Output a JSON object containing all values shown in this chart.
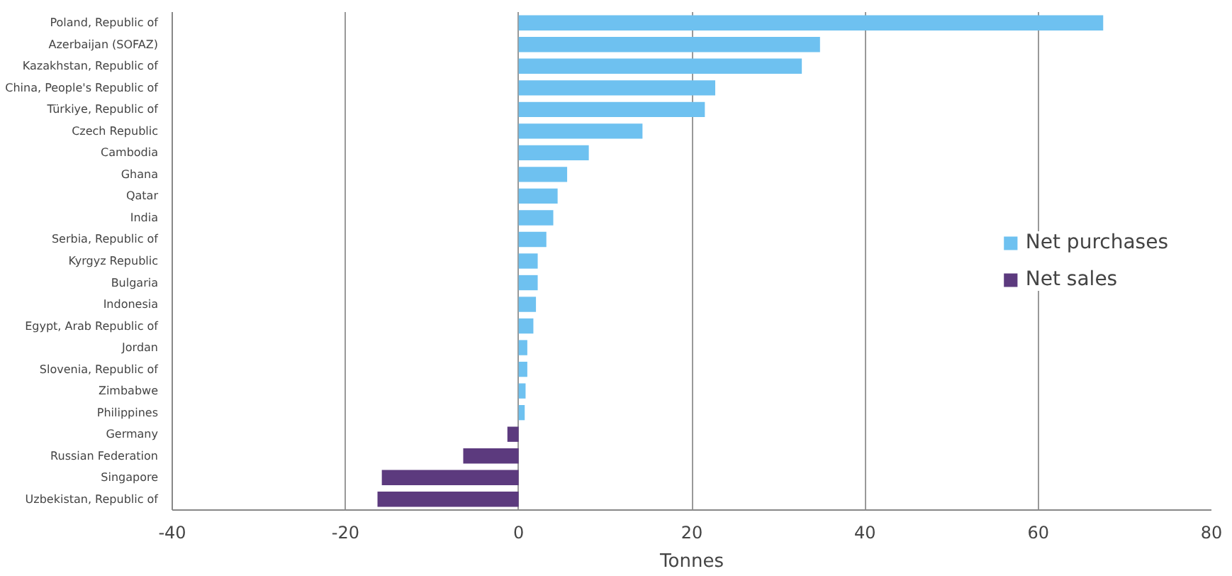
{
  "chart_data": {
    "type": "bar",
    "orientation": "horizontal",
    "xlabel": "Tonnes",
    "categories": [
      "Poland, Republic of",
      "Azerbaijan (SOFAZ)",
      "Kazakhstan, Republic of",
      "China, People's Republic of",
      "Türkiye, Republic of",
      "Czech Republic",
      "Cambodia",
      "Ghana",
      "Qatar",
      "India",
      "Serbia, Republic of",
      "Kyrgyz Republic",
      "Bulgaria",
      "Indonesia",
      "Egypt, Arab Republic of",
      "Jordan",
      "Slovenia, Republic of",
      "Zimbabwe",
      "Philippines",
      "Germany",
      "Russian Federation",
      "Singapore",
      "Uzbekistan, Republic of"
    ],
    "series": [
      {
        "name": "Net purchases",
        "color": "#6ec1f0",
        "values": [
          67.5,
          34.8,
          32.7,
          22.7,
          21.5,
          14.3,
          8.1,
          5.6,
          4.5,
          4.0,
          3.2,
          2.2,
          2.2,
          2.0,
          1.7,
          1.0,
          1.0,
          0.8,
          0.7,
          null,
          null,
          null,
          null
        ]
      },
      {
        "name": "Net sales",
        "color": "#5c3a7e",
        "values": [
          null,
          null,
          null,
          null,
          null,
          null,
          null,
          null,
          null,
          null,
          null,
          null,
          null,
          null,
          null,
          null,
          null,
          null,
          null,
          -1.3,
          -6.4,
          -15.8,
          -16.3
        ]
      }
    ],
    "xlim": [
      -40,
      80
    ],
    "xticks": [
      -40,
      -20,
      0,
      20,
      40,
      60,
      80
    ],
    "grid": "x",
    "legend": "right"
  }
}
